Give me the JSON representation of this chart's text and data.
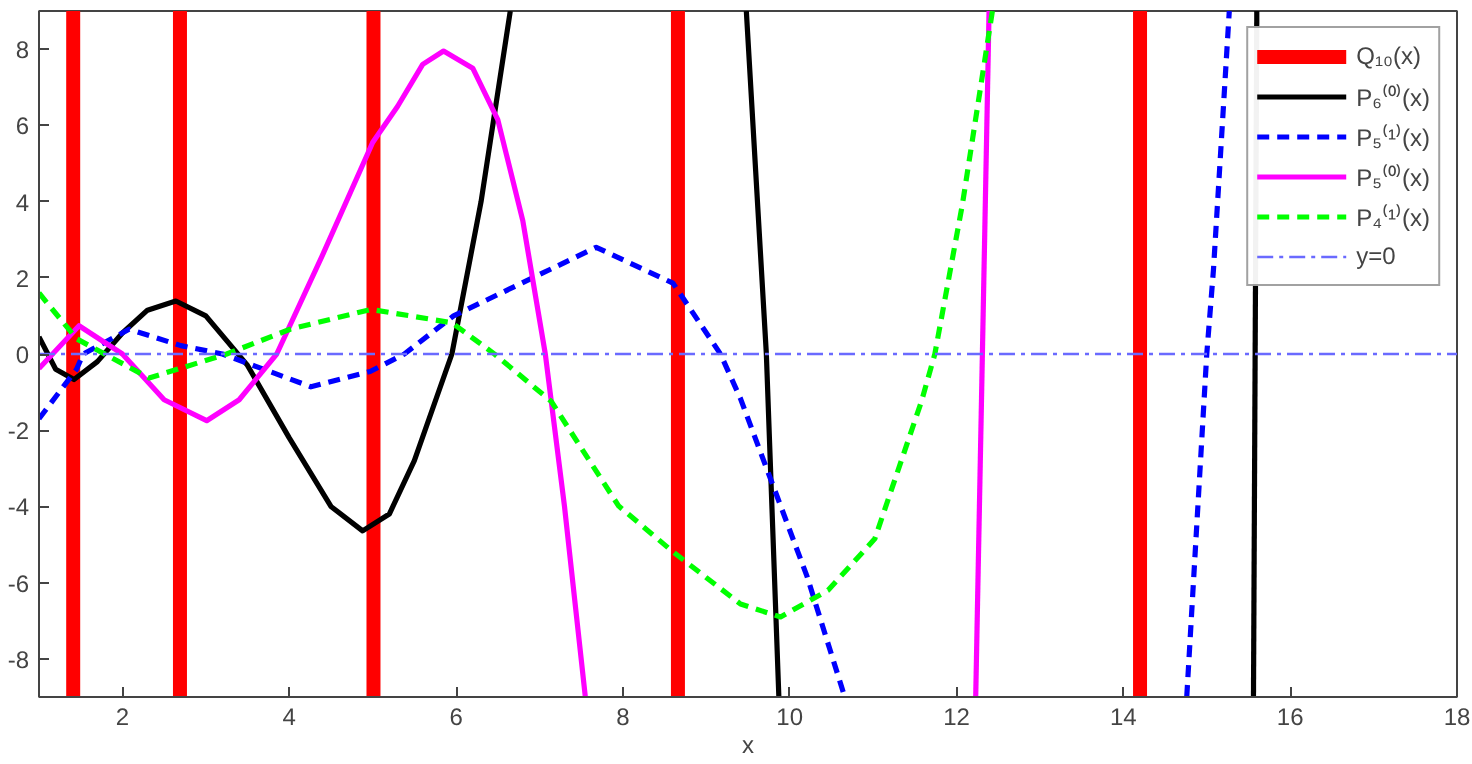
{
  "chart_data": {
    "type": "line",
    "xlabel": "x",
    "xlim": [
      1,
      18
    ],
    "ylim": [
      -9,
      9
    ],
    "xticks": [
      2,
      4,
      6,
      8,
      10,
      12,
      14,
      16,
      18
    ],
    "yticks": [
      -8,
      -6,
      -4,
      -2,
      0,
      2,
      4,
      6,
      8
    ],
    "grid": false,
    "legend": "top right",
    "marker": "none",
    "series": [
      {
        "name": "Q₁₀(x)",
        "color": "#ff0000",
        "line_style": "solid",
        "x": [
          1.41,
          1.41
        ],
        "values": [
          9,
          -9
        ]
      },
      {
        "color": "#ff0000",
        "line_style": "solid",
        "x": [
          2.69,
          2.69
        ],
        "values": [
          9,
          -9
        ]
      },
      {
        "color": "#ff0000",
        "line_style": "solid",
        "x": [
          5.01,
          5.01
        ],
        "values": [
          9,
          -9
        ]
      },
      {
        "color": "#ff0000",
        "line_style": "solid",
        "x": [
          8.66,
          8.66
        ],
        "values": [
          9,
          -9
        ]
      },
      {
        "color": "#ff0000",
        "line_style": "solid",
        "x": [
          14.2,
          14.2
        ],
        "values": [
          9,
          -9
        ]
      },
      {
        "name": "P₆⁽⁰⁾(x)",
        "color": "#000000",
        "line_style": "solid",
        "x": [
          1,
          1.2,
          1.42,
          1.7,
          2,
          2.3,
          2.64,
          3,
          3.5,
          4,
          4.5,
          4.88,
          5.2,
          5.5,
          5.95,
          6.3,
          6.65
        ],
        "values": [
          0.45,
          -0.4,
          -0.67,
          -0.2,
          0.55,
          1.15,
          1.39,
          1.0,
          -0.3,
          -2.2,
          -4.0,
          -4.64,
          -4.2,
          -2.8,
          0,
          4.0,
          9
        ]
      },
      {
        "color": "#000000",
        "line_style": "solid",
        "x": [
          9.48,
          9.72,
          9.87
        ],
        "values": [
          9,
          0,
          -9
        ]
      },
      {
        "color": "#000000",
        "line_style": "solid",
        "x": [
          15.56,
          15.6
        ],
        "values": [
          -9,
          9
        ]
      },
      {
        "name": "P₅⁽¹⁾(x)",
        "color": "#0000ff",
        "line_style": "dashed",
        "x": [
          1,
          1.45,
          1.53,
          2.08,
          2.7,
          3.2,
          4.26,
          4.97,
          5.38,
          5.97,
          7.68,
          8.6,
          9.17,
          9.41,
          9.74,
          10.21,
          10.66
        ],
        "values": [
          -1.7,
          -0.4,
          0,
          0.65,
          0.22,
          0,
          -0.86,
          -0.46,
          0,
          1.0,
          2.8,
          1.86,
          0,
          -1.17,
          -3.1,
          -5.85,
          -9
        ]
      },
      {
        "color": "#0000ff",
        "line_style": "dashed",
        "x": [
          14.76,
          14.92,
          15.0,
          15.08,
          15.27
        ],
        "values": [
          -9,
          -3,
          0,
          2.2,
          9
        ]
      },
      {
        "name": "P₅⁽⁰⁾(x)",
        "color": "#ff00ff",
        "line_style": "solid",
        "x": [
          1,
          1.48,
          2.0,
          2.5,
          3.01,
          3.4,
          3.85,
          4.4,
          5,
          5.3,
          5.6,
          5.85,
          6.2,
          6.5,
          6.8,
          7.07,
          7.3,
          7.55
        ],
        "values": [
          -0.38,
          0.74,
          0,
          -1.2,
          -1.75,
          -1.2,
          0,
          2.6,
          5.55,
          6.5,
          7.6,
          7.95,
          7.5,
          6.15,
          3.5,
          0,
          -4,
          -9
        ]
      },
      {
        "color": "#ff00ff",
        "line_style": "solid",
        "x": [
          12.23,
          12.39
        ],
        "values": [
          -9,
          9
        ]
      },
      {
        "name": "P₄⁽¹⁾(x)",
        "color": "#00ff00",
        "line_style": "dashed",
        "x": [
          1,
          1.45,
          2.32,
          3.25,
          4.01,
          4.98,
          5.95,
          6.46,
          7.14,
          7.95,
          8.6,
          9.41,
          9.89,
          10.46,
          11.02,
          11.58,
          11.74,
          12.07,
          12.43
        ],
        "values": [
          1.6,
          0.4,
          -0.63,
          0,
          0.65,
          1.17,
          0.82,
          0,
          -1.24,
          -3.99,
          -5.19,
          -6.56,
          -6.9,
          -6.2,
          -4.85,
          -1.24,
          0,
          3.92,
          9
        ]
      },
      {
        "name": "y=0",
        "color": "#6a6aff",
        "line_style": "dashdot",
        "x": [
          1,
          18
        ],
        "values": [
          0,
          0
        ]
      }
    ]
  }
}
